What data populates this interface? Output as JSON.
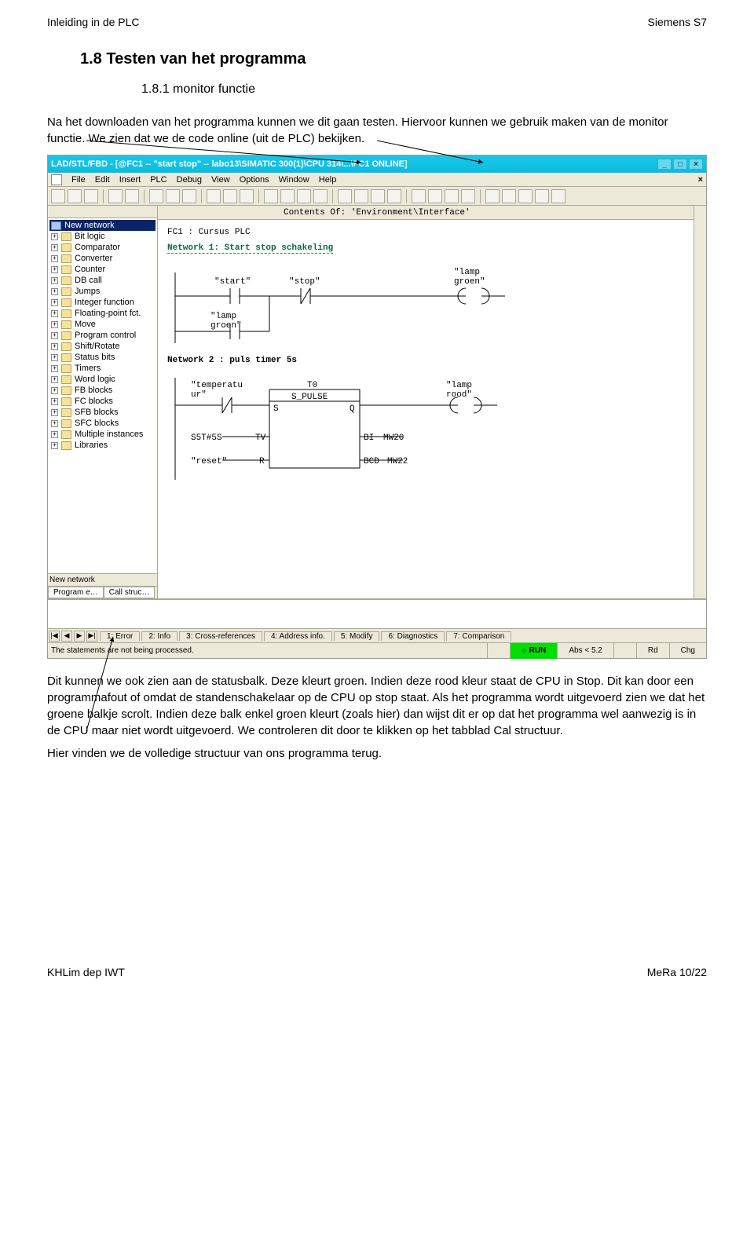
{
  "doc": {
    "header_left": "Inleiding in de PLC",
    "header_right": "Siemens S7",
    "h18": "1.8   Testen van het programma",
    "h181": "1.8.1  monitor functie",
    "intro": "Na het downloaden van het programma kunnen we dit gaan testen. Hiervoor kunnen we gebruik maken van de monitor functie. We zien dat we de code online (uit de PLC) bekijken.",
    "after": "Dit kunnen we ook zien aan de statusbalk. Deze kleurt groen. Indien deze rood kleur staat de CPU in Stop. Dit kan door een programmafout of omdat de standenschakelaar op de CPU op stop staat. Als het programma wordt uitgevoerd zien we dat het groene balkje scrolt. Indien deze balk enkel groen kleurt (zoals hier) dan wijst dit er op dat het programma wel aanwezig is in de CPU maar niet wordt uitgevoerd. We controleren dit door te klikken op het tabblad Cal structuur.",
    "after2": "Hier vinden we de volledige structuur van ons programma terug.",
    "footer_left": "KHLim dep IWT",
    "footer_right": "MeRa  10/22"
  },
  "titlebar": {
    "text": "LAD/STL/FBD  - [@FC1 -- \"start stop\" -- labo13\\SIMATIC 300(1)\\CPU 314\\...\\FC1  ONLINE]",
    "min": "_",
    "max": "□",
    "close": "×"
  },
  "menu": {
    "items": [
      "File",
      "Edit",
      "Insert",
      "PLC",
      "Debug",
      "View",
      "Options",
      "Window",
      "Help"
    ],
    "close_doc": "×"
  },
  "toolbar_count": 28,
  "tree": {
    "selected": "New network",
    "items": [
      "Bit logic",
      "Comparator",
      "Converter",
      "Counter",
      "DB call",
      "Jumps",
      "Integer function",
      "Floating-point fct.",
      "Move",
      "Program control",
      "Shift/Rotate",
      "Status bits",
      "Timers",
      "Word logic",
      "FB blocks",
      "FC blocks",
      "SFB blocks",
      "SFC blocks",
      "Multiple instances",
      "Libraries"
    ],
    "bottom_text": "New network",
    "tab1": "Program e…",
    "tab2": "Call struc…"
  },
  "contents_bar": "Contents Of: 'Environment\\Interface'",
  "ladder": {
    "fc_title": "FC1 : Cursus PLC",
    "nw1": "Network 1: Start stop schakeling",
    "nw1_labels": {
      "start": "\"start\"",
      "stop": "\"stop\"",
      "lamp": "\"lamp\ngroen\"",
      "hold": "\"lamp\ngroen\""
    },
    "nw2": "Network 2 : puls timer 5s",
    "nw2_labels": {
      "temp": "\"temperatu\nur\"",
      "t0": "T0",
      "type": "S_PULSE",
      "lamp": "\"lamp\nrood\"",
      "tv": "S5T#5S",
      "tv_lbl": "TV",
      "bi": "BI",
      "mw20": "MW20",
      "reset": "\"reset\"",
      "r": "R",
      "bcd": "BCD",
      "mw22": "MW22",
      "s": "S",
      "q": "Q"
    }
  },
  "bottom_tabs": {
    "nav": [
      "|◀",
      "◀",
      "▶",
      "▶|"
    ],
    "tabs": [
      "1: Error",
      "2: Info",
      "3: Cross-references",
      "4: Address info.",
      "5: Modify",
      "6: Diagnostics",
      "7: Comparison"
    ]
  },
  "status": {
    "msg": "The statements are not being processed.",
    "run": "RUN",
    "abs": "Abs < 5.2",
    "rd": "Rd",
    "chg": "Chg"
  },
  "arrows": {
    "color": "#000000"
  }
}
